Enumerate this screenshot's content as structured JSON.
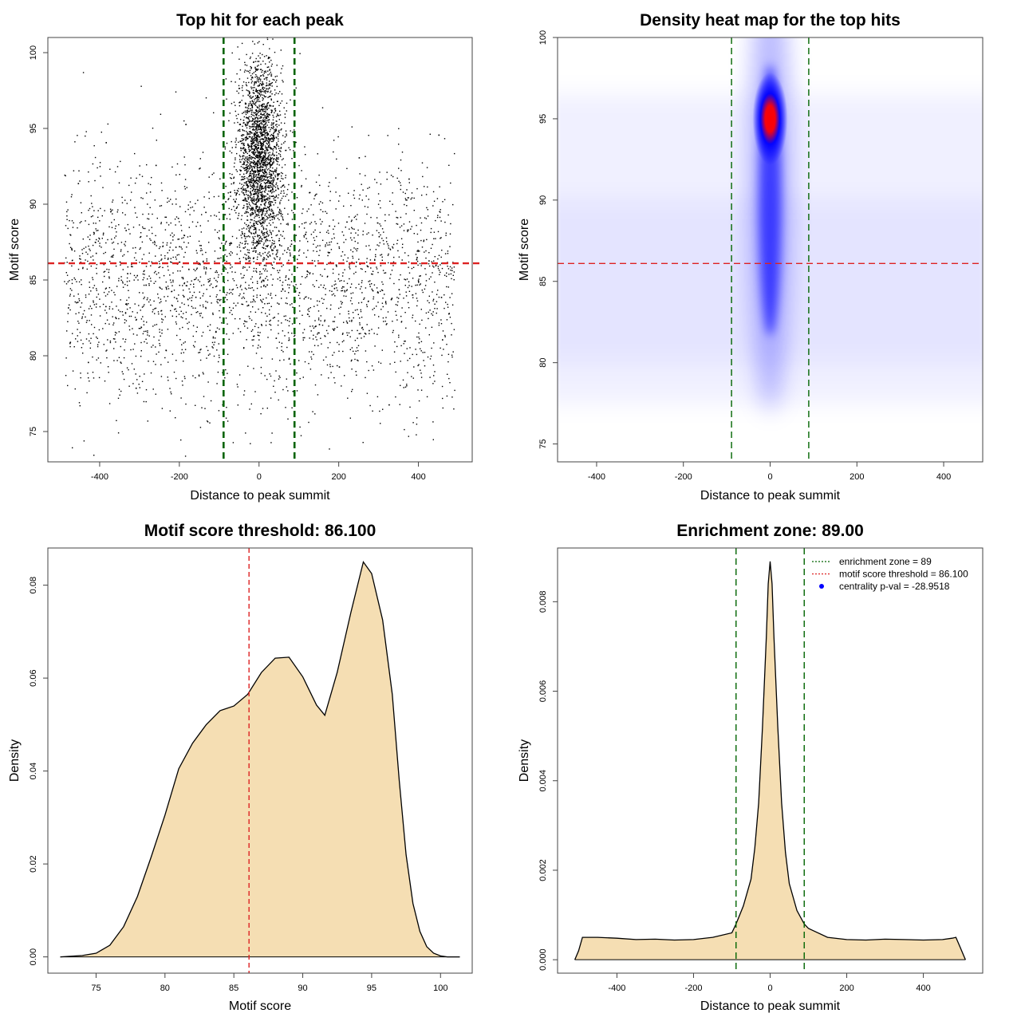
{
  "chart_data": [
    {
      "type": "scatter",
      "title": "Top hit for each peak",
      "xlabel": "Distance to peak summit",
      "ylabel": "Motif score",
      "xlim": [
        -530,
        535
      ],
      "ylim": [
        73,
        101
      ],
      "x_ticks": [
        "-400",
        "-200",
        "0",
        "200",
        "400"
      ],
      "y_ticks": [
        "75",
        "80",
        "85",
        "90",
        "95",
        "100"
      ],
      "reference_lines": {
        "vertical": [
          -89,
          89
        ],
        "horizontal": 86.1,
        "vertical_color": "#006400",
        "horizontal_color": "#dd2222"
      },
      "point_color": "#000000",
      "points_sample": [
        [
          -480,
          83.2
        ],
        [
          -455,
          91.4
        ],
        [
          -430,
          79.6
        ],
        [
          -410,
          86.8
        ],
        [
          -385,
          94.1
        ],
        [
          -360,
          82.5
        ],
        [
          -335,
          88.3
        ],
        [
          -310,
          77.9
        ],
        [
          -285,
          84.7
        ],
        [
          -260,
          92.6
        ],
        [
          -235,
          80.4
        ],
        [
          -210,
          87.2
        ],
        [
          -185,
          95.3
        ],
        [
          -160,
          83.9
        ],
        [
          -135,
          89.5
        ],
        [
          -110,
          81.6
        ],
        [
          -85,
          90.2
        ],
        [
          -60,
          93.8
        ],
        [
          -40,
          96.1
        ],
        [
          -20,
          94.4
        ],
        [
          -10,
          97.5
        ],
        [
          0,
          95.2
        ],
        [
          5,
          92.8
        ],
        [
          12,
          98.3
        ],
        [
          20,
          93.6
        ],
        [
          30,
          89.7
        ],
        [
          45,
          95.9
        ],
        [
          60,
          91.3
        ],
        [
          80,
          87.4
        ],
        [
          100,
          84.2
        ],
        [
          125,
          90.8
        ],
        [
          150,
          82.1
        ],
        [
          175,
          88.6
        ],
        [
          200,
          79.3
        ],
        [
          225,
          85.9
        ],
        [
          250,
          93.1
        ],
        [
          275,
          81.7
        ],
        [
          300,
          87.9
        ],
        [
          325,
          76.8
        ],
        [
          350,
          84.4
        ],
        [
          375,
          91.7
        ],
        [
          400,
          80.9
        ],
        [
          425,
          86.3
        ],
        [
          450,
          94.6
        ],
        [
          475,
          82.8
        ],
        [
          -15,
          86.5
        ],
        [
          8,
          88.1
        ],
        [
          -5,
          90.9
        ],
        [
          15,
          84.6
        ],
        [
          -25,
          91.9
        ]
      ]
    },
    {
      "type": "heatmap",
      "title": "Density heat map for the top hits",
      "xlabel": "Distance to peak summit",
      "ylabel": "Motif score",
      "xlim": [
        -490,
        490
      ],
      "ylim": [
        73.9,
        100
      ],
      "x_ticks": [
        "-400",
        "-200",
        "0",
        "200",
        "400"
      ],
      "y_ticks": [
        "75",
        "80",
        "85",
        "90",
        "95",
        "100"
      ],
      "reference_lines": {
        "vertical": [
          -89,
          89
        ],
        "horizontal": 86.1,
        "vertical_color": "#006400",
        "horizontal_color": "#dd2222"
      },
      "color_scale": [
        "#ffffff",
        "#0000ff",
        "#ff0000"
      ],
      "density_peak": {
        "x": 0,
        "y": 95
      }
    },
    {
      "type": "area",
      "title": "Motif score threshold: 86.100",
      "xlabel": "Motif score",
      "ylabel": "Density",
      "xlim": [
        71.5,
        102.3
      ],
      "ylim": [
        -0.0035,
        0.088
      ],
      "x_ticks": [
        "75",
        "80",
        "85",
        "90",
        "95",
        "100"
      ],
      "y_ticks": [
        "0.00",
        "0.02",
        "0.04",
        "0.06",
        "0.08"
      ],
      "fill_color": "#f5deb3",
      "threshold": 86.1,
      "threshold_color": "#dd2222",
      "x": [
        72.4,
        74,
        75,
        76,
        77,
        78,
        79,
        80,
        81,
        82,
        83,
        84,
        85,
        86,
        87,
        88,
        89,
        90,
        91,
        91.6,
        92.5,
        93.5,
        94.4,
        95,
        95.8,
        96.5,
        97,
        97.5,
        98,
        98.5,
        99,
        99.5,
        100,
        100.5,
        101.4
      ],
      "y": [
        0.0,
        0.0003,
        0.0008,
        0.0025,
        0.0065,
        0.013,
        0.0215,
        0.0305,
        0.0405,
        0.046,
        0.05,
        0.053,
        0.054,
        0.0565,
        0.0612,
        0.0643,
        0.0645,
        0.0603,
        0.0542,
        0.052,
        0.0612,
        0.0742,
        0.085,
        0.0825,
        0.0725,
        0.0565,
        0.038,
        0.022,
        0.0115,
        0.0055,
        0.0022,
        0.0008,
        0.0002,
        0.0,
        0.0
      ]
    },
    {
      "type": "area",
      "title": "Enrichment zone: 89.00",
      "xlabel": "Distance to peak summit",
      "ylabel": "Density",
      "xlim": [
        -555,
        555
      ],
      "ylim": [
        -0.0003,
        0.0092
      ],
      "x_ticks": [
        "-400",
        "-200",
        "0",
        "200",
        "400"
      ],
      "y_ticks": [
        "0.000",
        "0.002",
        "0.004",
        "0.006",
        "0.008"
      ],
      "fill_color": "#f5deb3",
      "reference_lines": {
        "vertical": [
          -89,
          89
        ],
        "vertical_color": "#006400"
      },
      "x": [
        -510,
        -500,
        -490,
        -480,
        -450,
        -400,
        -350,
        -300,
        -250,
        -200,
        -150,
        -100,
        -89,
        -70,
        -50,
        -40,
        -30,
        -20,
        -10,
        -5,
        0,
        5,
        10,
        20,
        30,
        40,
        50,
        70,
        89,
        100,
        150,
        200,
        250,
        300,
        350,
        400,
        450,
        475,
        485,
        495,
        505,
        510
      ],
      "y": [
        0.0,
        0.0002,
        0.0005,
        0.0005,
        0.0005,
        0.00048,
        0.00045,
        0.00046,
        0.00044,
        0.00045,
        0.0005,
        0.0006,
        0.0008,
        0.0012,
        0.0018,
        0.0025,
        0.0035,
        0.0052,
        0.0072,
        0.0084,
        0.0089,
        0.0084,
        0.0072,
        0.0052,
        0.0035,
        0.0024,
        0.0017,
        0.0011,
        0.0008,
        0.0007,
        0.0005,
        0.00045,
        0.00044,
        0.00046,
        0.00045,
        0.00044,
        0.00045,
        0.00048,
        0.0005,
        0.0003,
        0.0001,
        0.0
      ],
      "legend": {
        "position": "top-right",
        "entries": [
          {
            "label": "enrichment zone = 89",
            "color": "#006400",
            "style": "dotted-line"
          },
          {
            "label": "motif score threshold = 86.100",
            "color": "#dd2222",
            "style": "dotted-line"
          },
          {
            "label": "centrality p-val = -28.9518",
            "color": "#0000ff",
            "style": "dot"
          }
        ]
      }
    }
  ]
}
